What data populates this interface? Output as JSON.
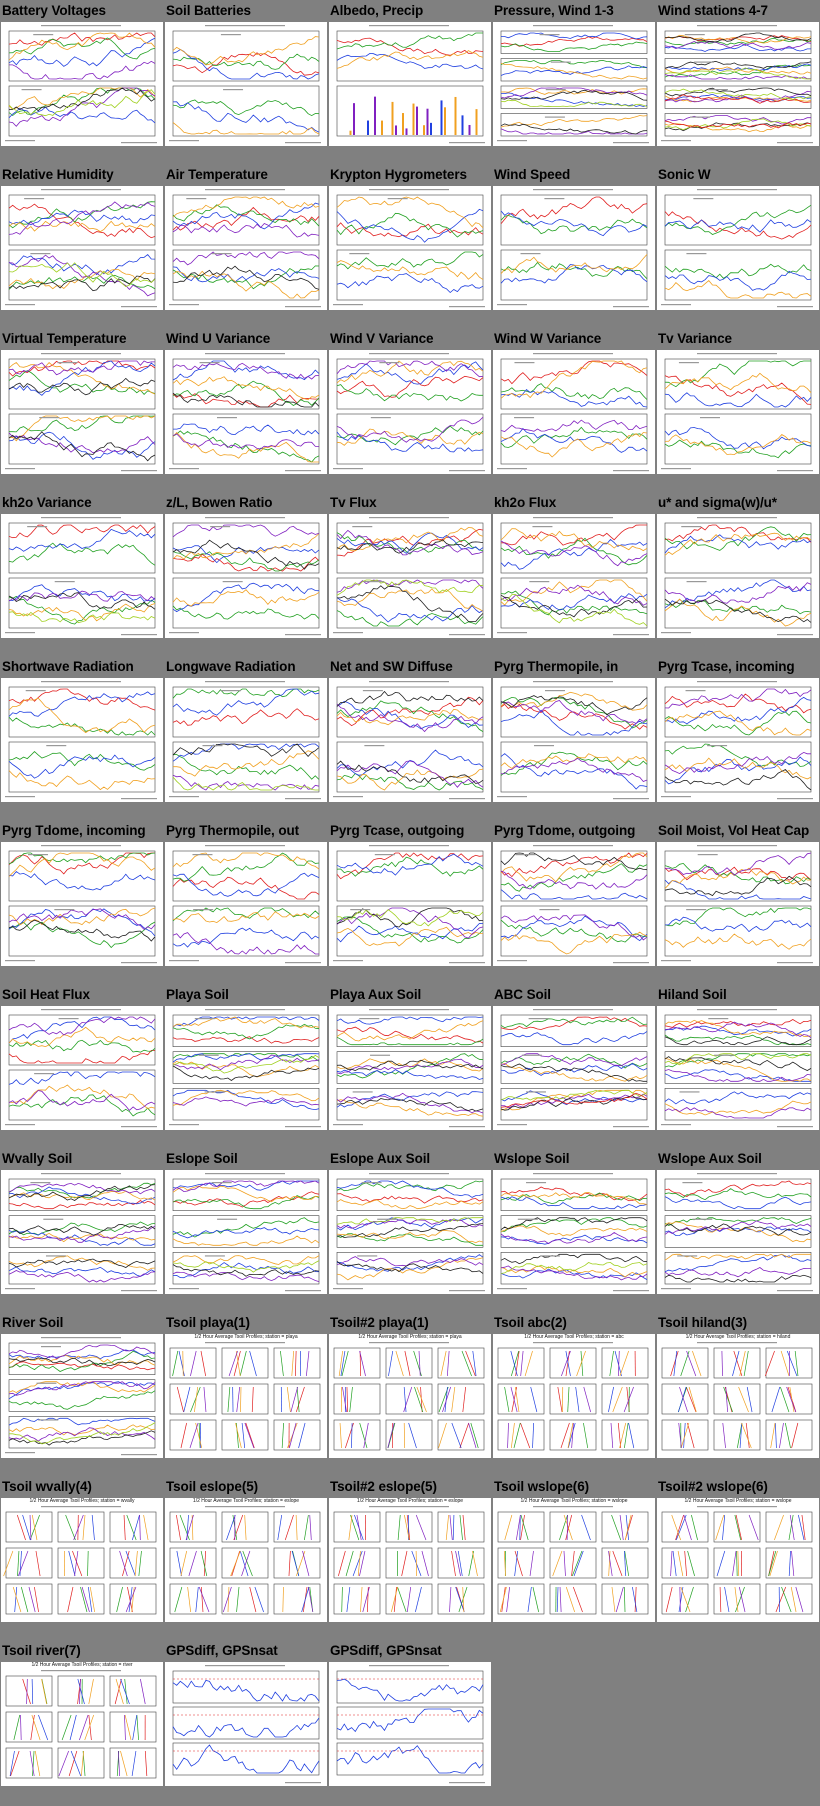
{
  "colors": {
    "background": "#808080",
    "red": "#e02020",
    "green": "#22a022",
    "blue": "#2040e0",
    "orange": "#f0a020",
    "purple": "#8020c0",
    "black": "#202020",
    "yellowgreen": "#a0d020",
    "gray": "#909090"
  },
  "thumbnails": [
    {
      "title": "Battery Voltages",
      "kind": "timeseries2",
      "icon": "timeseries-plot-icon"
    },
    {
      "title": "Soil Batteries",
      "kind": "timeseries2",
      "icon": "timeseries-plot-icon"
    },
    {
      "title": "Albedo, Precip",
      "kind": "bars",
      "icon": "timeseries-plot-icon"
    },
    {
      "title": "Pressure, Wind 1-3",
      "kind": "timeseries4",
      "icon": "timeseries-plot-icon"
    },
    {
      "title": "Wind stations 4-7",
      "kind": "timeseries4",
      "icon": "timeseries-plot-icon"
    },
    {
      "title": "Relative Humidity",
      "kind": "timeseries2",
      "icon": "timeseries-plot-icon"
    },
    {
      "title": "Air Temperature",
      "kind": "timeseries2",
      "icon": "timeseries-plot-icon"
    },
    {
      "title": "Krypton Hygrometers",
      "kind": "timeseries2",
      "icon": "timeseries-plot-icon"
    },
    {
      "title": "Wind Speed",
      "kind": "timeseries2",
      "icon": "timeseries-plot-icon"
    },
    {
      "title": "Sonic W",
      "kind": "timeseries2",
      "icon": "timeseries-plot-icon"
    },
    {
      "title": "Virtual Temperature",
      "kind": "timeseries2",
      "icon": "timeseries-plot-icon"
    },
    {
      "title": "Wind U Variance",
      "kind": "timeseries2",
      "icon": "timeseries-plot-icon"
    },
    {
      "title": "Wind V Variance",
      "kind": "timeseries2",
      "icon": "timeseries-plot-icon"
    },
    {
      "title": "Wind W Variance",
      "kind": "timeseries2",
      "icon": "timeseries-plot-icon"
    },
    {
      "title": "Tv Variance",
      "kind": "timeseries2",
      "icon": "timeseries-plot-icon"
    },
    {
      "title": "kh2o Variance",
      "kind": "timeseries2",
      "icon": "timeseries-plot-icon"
    },
    {
      "title": "z/L, Bowen Ratio",
      "kind": "timeseries2",
      "icon": "timeseries-plot-icon"
    },
    {
      "title": "Tv Flux",
      "kind": "timeseries2",
      "icon": "timeseries-plot-icon"
    },
    {
      "title": "kh2o Flux",
      "kind": "timeseries2",
      "icon": "timeseries-plot-icon"
    },
    {
      "title": "u* and sigma(w)/u*",
      "kind": "timeseries2",
      "icon": "timeseries-plot-icon"
    },
    {
      "title": "Shortwave Radiation",
      "kind": "timeseries2",
      "icon": "timeseries-plot-icon"
    },
    {
      "title": "Longwave Radiation",
      "kind": "timeseries2",
      "icon": "timeseries-plot-icon"
    },
    {
      "title": "Net and SW Diffuse",
      "kind": "timeseries2",
      "icon": "timeseries-plot-icon"
    },
    {
      "title": "Pyrg Thermopile, in",
      "kind": "timeseries2",
      "icon": "timeseries-plot-icon"
    },
    {
      "title": "Pyrg Tcase, incoming",
      "kind": "timeseries2",
      "icon": "timeseries-plot-icon"
    },
    {
      "title": "Pyrg Tdome, incoming",
      "kind": "timeseries2",
      "icon": "timeseries-plot-icon"
    },
    {
      "title": "Pyrg Thermopile, out",
      "kind": "timeseries2",
      "icon": "timeseries-plot-icon"
    },
    {
      "title": "Pyrg Tcase, outgoing",
      "kind": "timeseries2",
      "icon": "timeseries-plot-icon"
    },
    {
      "title": "Pyrg Tdome, outgoing",
      "kind": "timeseries2",
      "icon": "timeseries-plot-icon"
    },
    {
      "title": "Soil Moist, Vol Heat Cap",
      "kind": "timeseries2",
      "icon": "timeseries-plot-icon"
    },
    {
      "title": "Soil Heat Flux",
      "kind": "timeseries2",
      "icon": "timeseries-plot-icon"
    },
    {
      "title": "Playa Soil",
      "kind": "timeseries3",
      "icon": "timeseries-plot-icon"
    },
    {
      "title": "Playa Aux Soil",
      "kind": "timeseries3",
      "icon": "timeseries-plot-icon"
    },
    {
      "title": "ABC Soil",
      "kind": "timeseries3",
      "icon": "timeseries-plot-icon"
    },
    {
      "title": "Hiland Soil",
      "kind": "timeseries3",
      "icon": "timeseries-plot-icon"
    },
    {
      "title": "Wvally Soil",
      "kind": "timeseries3",
      "icon": "timeseries-plot-icon"
    },
    {
      "title": "Eslope Soil",
      "kind": "timeseries3",
      "icon": "timeseries-plot-icon"
    },
    {
      "title": "Eslope Aux Soil",
      "kind": "timeseries3",
      "icon": "timeseries-plot-icon"
    },
    {
      "title": "Wslope Soil",
      "kind": "timeseries3",
      "icon": "timeseries-plot-icon"
    },
    {
      "title": "Wslope Aux Soil",
      "kind": "timeseries3",
      "icon": "timeseries-plot-icon"
    },
    {
      "title": "River Soil",
      "kind": "timeseries3",
      "icon": "timeseries-plot-icon"
    },
    {
      "title": "Tsoil playa(1)",
      "kind": "profiles",
      "subtitle": "1/2 Hour Average Tsoil Profiles; station = playa",
      "icon": "profile-grid-icon"
    },
    {
      "title": "Tsoil#2 playa(1)",
      "kind": "profiles",
      "subtitle": "1/2 Hour Average Tsoil Profiles; station = playa",
      "icon": "profile-grid-icon"
    },
    {
      "title": "Tsoil abc(2)",
      "kind": "profiles",
      "subtitle": "1/2 Hour Average Tsoil Profiles; station = abc",
      "icon": "profile-grid-icon"
    },
    {
      "title": "Tsoil hiland(3)",
      "kind": "profiles",
      "subtitle": "1/2 Hour Average Tsoil Profiles; station = hiland",
      "icon": "profile-grid-icon"
    },
    {
      "title": "Tsoil wvally(4)",
      "kind": "profiles",
      "subtitle": "1/2 Hour Average Tsoil Profiles; station = wvally",
      "icon": "profile-grid-icon"
    },
    {
      "title": "Tsoil eslope(5)",
      "kind": "profiles",
      "subtitle": "1/2 Hour Average Tsoil Profiles; station = eslope",
      "icon": "profile-grid-icon"
    },
    {
      "title": "Tsoil#2 eslope(5)",
      "kind": "profiles",
      "subtitle": "1/2 Hour Average Tsoil Profiles; station = eslope",
      "icon": "profile-grid-icon"
    },
    {
      "title": "Tsoil wslope(6)",
      "kind": "profiles",
      "subtitle": "1/2 Hour Average Tsoil Profiles; station = wslope",
      "icon": "profile-grid-icon"
    },
    {
      "title": "Tsoil#2 wslope(6)",
      "kind": "profiles",
      "subtitle": "1/2 Hour Average Tsoil Profiles; station = wslope",
      "icon": "profile-grid-icon"
    },
    {
      "title": "Tsoil river(7)",
      "kind": "profiles",
      "subtitle": "1/2 Hour Average Tsoil Profiles; station = river",
      "icon": "profile-grid-icon"
    },
    {
      "title": "GPSdiff, GPSnsat",
      "kind": "gps",
      "icon": "timeseries-plot-icon"
    },
    {
      "title": "GPSdiff, GPSnsat",
      "kind": "gps",
      "icon": "timeseries-plot-icon"
    }
  ]
}
